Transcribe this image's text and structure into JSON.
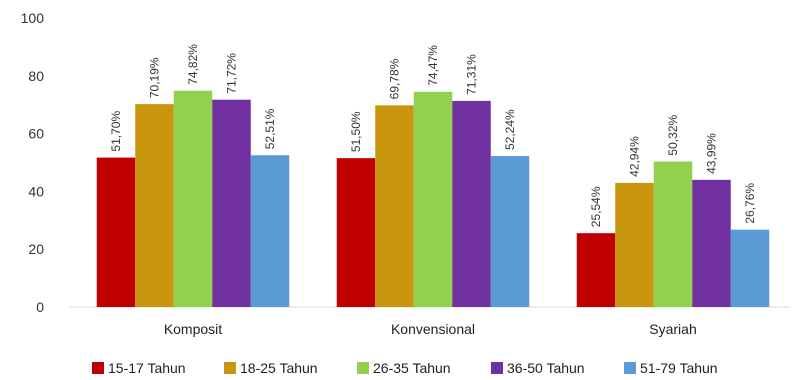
{
  "chart_data": {
    "type": "bar",
    "categories": [
      "Komposit",
      "Konvensional",
      "Syariah"
    ],
    "series": [
      {
        "name": "15-17 Tahun",
        "color": "#c00000",
        "values": [
          51.7,
          51.5,
          25.54
        ],
        "labels": [
          "51,70%",
          "51,50%",
          "25,54%"
        ]
      },
      {
        "name": "18-25 Tahun",
        "color": "#c8960c",
        "values": [
          70.19,
          69.78,
          42.94
        ],
        "labels": [
          "70,19%",
          "69,78%",
          "42,94%"
        ]
      },
      {
        "name": "26-35 Tahun",
        "color": "#92d050",
        "values": [
          74.82,
          74.47,
          50.32
        ],
        "labels": [
          "74,82%",
          "74,47%",
          "50,32%"
        ]
      },
      {
        "name": "36-50 Tahun",
        "color": "#7030a0",
        "values": [
          71.72,
          71.31,
          43.99
        ],
        "labels": [
          "71,72%",
          "71,31%",
          "43,99%"
        ]
      },
      {
        "name": "51-79 Tahun",
        "color": "#5b9bd5",
        "values": [
          52.51,
          52.24,
          26.76
        ],
        "labels": [
          "52,51%",
          "52,24%",
          "26,76%"
        ]
      }
    ],
    "yticks": [
      "0",
      "20",
      "40",
      "60",
      "80",
      "100"
    ],
    "ylim": [
      0,
      100
    ],
    "grid": false,
    "legend": "bottom",
    "title": "",
    "xlabel": "",
    "ylabel": ""
  }
}
